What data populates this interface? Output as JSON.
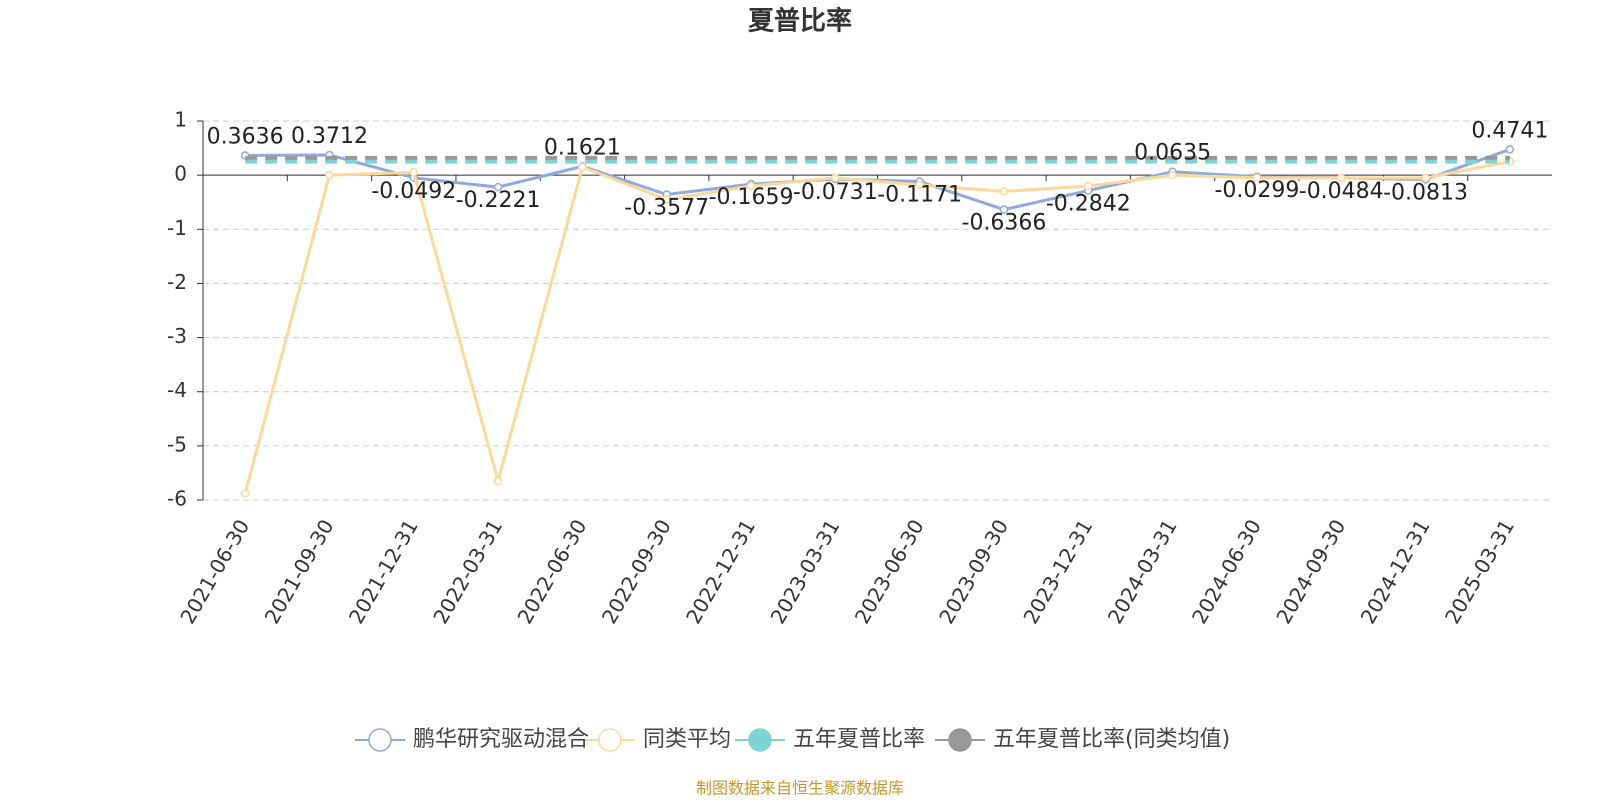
{
  "chart_data": {
    "type": "line",
    "title": "夏普比率",
    "categories": [
      "2021-06-30",
      "2021-09-30",
      "2021-12-31",
      "2022-03-31",
      "2022-06-30",
      "2022-09-30",
      "2022-12-31",
      "2023-03-31",
      "2023-06-30",
      "2023-09-30",
      "2023-12-31",
      "2024-03-31",
      "2024-06-30",
      "2024-09-30",
      "2024-12-31",
      "2025-03-31"
    ],
    "series": [
      {
        "name": "鹏华研究驱动混合",
        "color": "#8faadc",
        "values": [
          0.3636,
          0.3712,
          -0.0492,
          -0.2221,
          0.1621,
          -0.3577,
          -0.1659,
          -0.0731,
          -0.1171,
          -0.6366,
          -0.2842,
          0.0635,
          -0.0299,
          -0.0484,
          -0.0813,
          0.4741
        ]
      },
      {
        "name": "同类平均",
        "color": "#fdd89a",
        "values": [
          -5.88,
          0.0,
          0.05,
          -5.65,
          0.15,
          -0.45,
          -0.2,
          -0.05,
          -0.18,
          -0.3,
          -0.2,
          0.0,
          -0.05,
          -0.05,
          -0.05,
          0.25
        ]
      },
      {
        "name": "五年夏普比率",
        "color": "#7fd3d3",
        "values": [
          0.25,
          0.25,
          0.25,
          0.25,
          0.25,
          0.25,
          0.25,
          0.25,
          0.25,
          0.25,
          0.25,
          0.25,
          0.25,
          0.25,
          0.25,
          0.25
        ]
      },
      {
        "name": "五年夏普比率(同类均值)",
        "color": "#999999",
        "values": [
          0.32,
          0.32,
          0.32,
          0.32,
          0.32,
          0.32,
          0.32,
          0.32,
          0.32,
          0.32,
          0.32,
          0.32,
          0.32,
          0.32,
          0.32,
          0.32
        ]
      }
    ],
    "ylim": [
      -6,
      1
    ],
    "yticks": [
      -6,
      -5,
      -4,
      -3,
      -2,
      -1,
      0,
      1
    ],
    "grid": true,
    "source": "制图数据来自恒生聚源数据库"
  }
}
